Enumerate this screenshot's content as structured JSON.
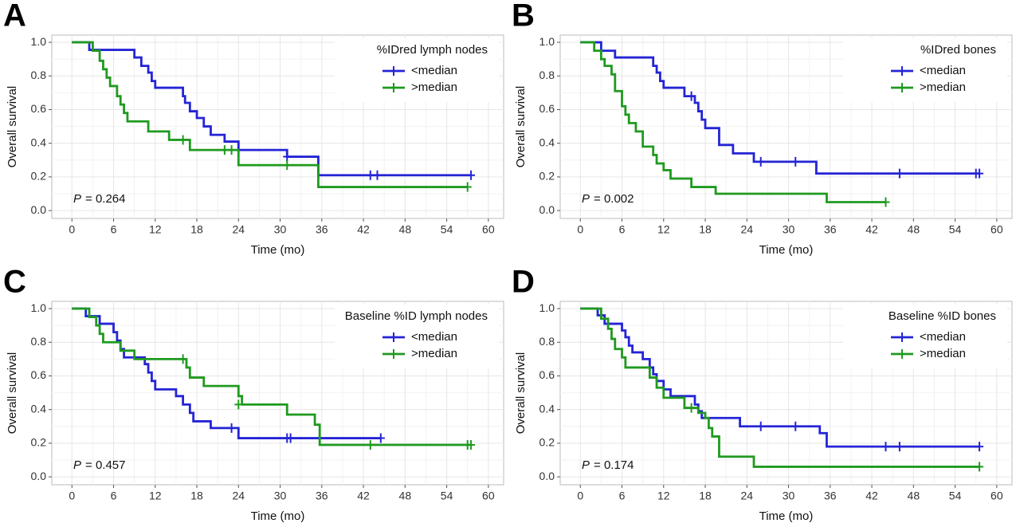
{
  "chart_data": [
    {
      "type": "line",
      "step": true,
      "panel_label": "A",
      "legend_title": "%IDred lymph nodes",
      "legend": "top-right",
      "annotation_prefix": "P",
      "annotation": "= 0.264",
      "x_label": "Time (mo)",
      "y_label": "Overall survival",
      "xlim": [
        -2.9,
        62.2
      ],
      "ylim": [
        -0.047,
        1.043
      ],
      "xticks": [
        0,
        6,
        12,
        18,
        24,
        30,
        36,
        42,
        48,
        54,
        60
      ],
      "yticks": [
        {
          "value": 0,
          "label": "0.0"
        },
        0.2,
        0.4,
        0.6,
        0.8,
        {
          "value": 1,
          "label": "1.0"
        }
      ],
      "grid": true,
      "series": [
        {
          "name": "<median",
          "color": "#2424d6",
          "x": [
            0,
            2.5,
            9,
            10,
            11,
            11.5,
            12,
            16,
            16.3,
            17,
            18,
            19,
            20,
            22,
            24,
            31,
            35.5,
            57.5
          ],
          "values": [
            1,
            0.955,
            0.91,
            0.86,
            0.82,
            0.77,
            0.73,
            0.68,
            0.64,
            0.59,
            0.55,
            0.5,
            0.45,
            0.41,
            0.36,
            0.32,
            0.21,
            0.21
          ],
          "censor_x": [
            31,
            43,
            44,
            57.5
          ],
          "censor_values": [
            0.32,
            0.21,
            0.21,
            0.21
          ]
        },
        {
          "name": ">median",
          "color": "#1f9a1f",
          "x": [
            0,
            3,
            4,
            4.5,
            5,
            5.5,
            6.5,
            7,
            7.5,
            8,
            11,
            14,
            17,
            24,
            35.5,
            57
          ],
          "values": [
            1,
            0.95,
            0.89,
            0.84,
            0.79,
            0.74,
            0.68,
            0.63,
            0.58,
            0.53,
            0.47,
            0.42,
            0.36,
            0.27,
            0.14,
            0.14
          ],
          "censor_x": [
            16,
            22,
            23,
            31,
            57
          ],
          "censor_values": [
            0.42,
            0.36,
            0.36,
            0.27,
            0.14
          ]
        }
      ]
    },
    {
      "type": "line",
      "step": true,
      "panel_label": "B",
      "legend_title": "%IDred bones",
      "legend": "top-right",
      "annotation_prefix": "P",
      "annotation": "= 0.002",
      "x_label": "Time (mo)",
      "y_label": "Overall  survival",
      "xlim": [
        -2.9,
        62.2
      ],
      "ylim": [
        -0.047,
        1.043
      ],
      "xticks": [
        0,
        6,
        12,
        18,
        24,
        30,
        36,
        42,
        48,
        54,
        60
      ],
      "yticks": [
        {
          "value": 0,
          "label": "0.0"
        },
        0.2,
        0.4,
        0.6,
        0.8,
        {
          "value": 1,
          "label": "1.0"
        }
      ],
      "grid": true,
      "series": [
        {
          "name": "<median",
          "color": "#2424d6",
          "x": [
            0,
            3,
            5,
            10.5,
            11,
            11.5,
            12,
            15,
            16.5,
            17,
            17.5,
            18,
            20,
            22,
            25,
            34,
            57.5
          ],
          "values": [
            1,
            0.95,
            0.91,
            0.86,
            0.82,
            0.77,
            0.73,
            0.68,
            0.64,
            0.59,
            0.54,
            0.49,
            0.39,
            0.34,
            0.29,
            0.22,
            0.22
          ],
          "censor_x": [
            16,
            26,
            31,
            46,
            57,
            57.5
          ],
          "censor_values": [
            0.68,
            0.29,
            0.29,
            0.22,
            0.22,
            0.22
          ]
        },
        {
          "name": ">median",
          "color": "#1f9a1f",
          "x": [
            0,
            2,
            3,
            3.5,
            4.5,
            5,
            6,
            6.5,
            7,
            8,
            9,
            10.5,
            11,
            12,
            13,
            16,
            19.5,
            35.5,
            44
          ],
          "values": [
            1,
            0.95,
            0.9,
            0.86,
            0.81,
            0.71,
            0.62,
            0.57,
            0.52,
            0.47,
            0.38,
            0.33,
            0.28,
            0.24,
            0.19,
            0.14,
            0.1,
            0.05,
            0.05
          ],
          "censor_x": [
            44
          ],
          "censor_values": [
            0.05
          ]
        }
      ]
    },
    {
      "type": "line",
      "step": true,
      "panel_label": "C",
      "legend_title": "Baseline %ID lymph nodes",
      "legend": "top-right",
      "annotation_prefix": "P",
      "annotation": "= 0.457",
      "x_label": "Time (mo)",
      "y_label": "Overall survival",
      "xlim": [
        -2.9,
        62.2
      ],
      "ylim": [
        -0.047,
        1.043
      ],
      "xticks": [
        0,
        6,
        12,
        18,
        24,
        30,
        36,
        42,
        48,
        54,
        60
      ],
      "yticks": [
        {
          "value": 0,
          "label": "0.0"
        },
        0.2,
        0.4,
        0.6,
        0.8,
        {
          "value": 1,
          "label": "1.0"
        }
      ],
      "grid": true,
      "series": [
        {
          "name": "<median",
          "color": "#2424d6",
          "x": [
            0,
            2,
            4,
            6,
            6.5,
            7,
            7.5,
            10.5,
            11,
            11.5,
            12,
            15,
            16,
            17,
            17.5,
            20,
            24,
            44.5
          ],
          "values": [
            1,
            0.955,
            0.91,
            0.86,
            0.81,
            0.76,
            0.71,
            0.67,
            0.62,
            0.57,
            0.52,
            0.48,
            0.43,
            0.38,
            0.33,
            0.29,
            0.23,
            0.23
          ],
          "censor_x": [
            23,
            31,
            31.5,
            44.5
          ],
          "censor_values": [
            0.29,
            0.23,
            0.23,
            0.23
          ]
        },
        {
          "name": ">median",
          "color": "#1f9a1f",
          "x": [
            0,
            2.5,
            3.5,
            4,
            4.5,
            7,
            9,
            16.5,
            17,
            19,
            24,
            24.5,
            31,
            35,
            35.7,
            57.5
          ],
          "values": [
            1,
            0.95,
            0.9,
            0.85,
            0.8,
            0.75,
            0.7,
            0.65,
            0.59,
            0.54,
            0.48,
            0.43,
            0.37,
            0.31,
            0.19,
            0.19
          ],
          "censor_x": [
            16,
            24,
            43,
            57,
            57.5
          ],
          "censor_values": [
            0.7,
            0.43,
            0.19,
            0.19,
            0.19
          ]
        }
      ]
    },
    {
      "type": "line",
      "step": true,
      "panel_label": "D",
      "legend_title": "Baseline %ID bones",
      "legend": "top-right",
      "annotation_prefix": "P",
      "annotation": "= 0.174",
      "x_label": "Time (mo)",
      "y_label": "Overall survival",
      "xlim": [
        -2.9,
        62.2
      ],
      "ylim": [
        -0.047,
        1.043
      ],
      "xticks": [
        0,
        6,
        12,
        18,
        24,
        30,
        36,
        42,
        48,
        54,
        60
      ],
      "yticks": [
        {
          "value": 0,
          "label": "0.0"
        },
        0.2,
        0.4,
        0.6,
        0.8,
        {
          "value": 1,
          "label": "1.0"
        }
      ],
      "grid": true,
      "series": [
        {
          "name": "<median",
          "color": "#2424d6",
          "x": [
            0,
            2.5,
            3.5,
            6,
            6.5,
            7,
            7.5,
            9,
            10,
            10.5,
            11,
            12,
            13,
            16.5,
            17,
            17.5,
            23,
            34.5,
            35.5,
            57.5
          ],
          "values": [
            1,
            0.96,
            0.91,
            0.87,
            0.83,
            0.78,
            0.74,
            0.7,
            0.65,
            0.61,
            0.57,
            0.52,
            0.48,
            0.43,
            0.39,
            0.35,
            0.3,
            0.26,
            0.18,
            0.18
          ],
          "censor_x": [
            26,
            31,
            44,
            46,
            57.5
          ],
          "censor_values": [
            0.3,
            0.3,
            0.18,
            0.18,
            0.18
          ]
        },
        {
          "name": ">median",
          "color": "#1f9a1f",
          "x": [
            0,
            3,
            4,
            4.5,
            5,
            6,
            6.5,
            10,
            11,
            12,
            15,
            17,
            18,
            18.5,
            19,
            20,
            25,
            57.5
          ],
          "values": [
            1,
            0.94,
            0.88,
            0.82,
            0.76,
            0.71,
            0.65,
            0.59,
            0.53,
            0.47,
            0.41,
            0.38,
            0.35,
            0.29,
            0.24,
            0.12,
            0.06,
            0.06
          ],
          "censor_x": [
            16,
            57.5
          ],
          "censor_values": [
            0.41,
            0.06
          ]
        }
      ]
    }
  ]
}
